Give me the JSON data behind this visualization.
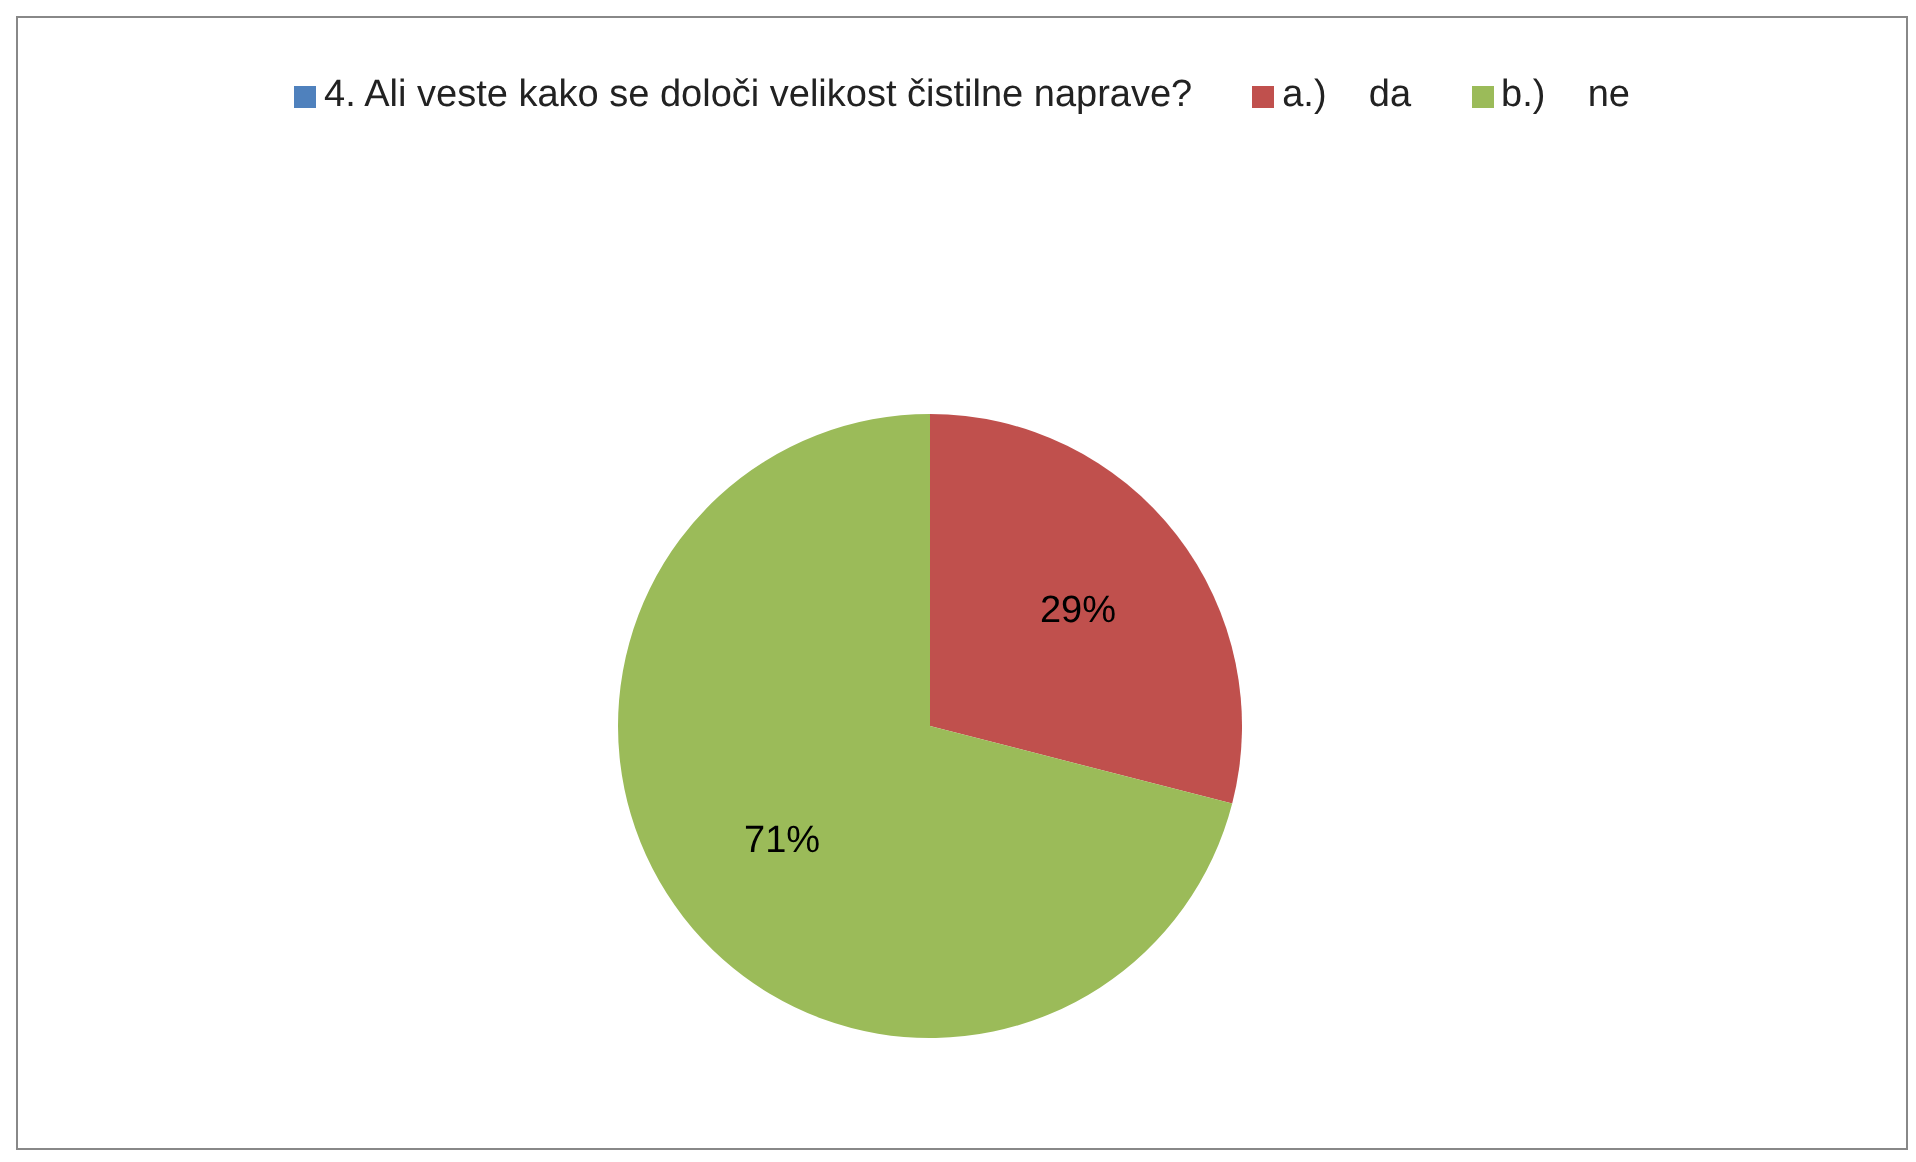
{
  "chart_data": {
    "type": "pie",
    "categories": [
      "a.)    da",
      "b.)    ne"
    ],
    "series": [
      {
        "name": "4. Ali veste kako se določi velikost čistilne naprave?",
        "color": "#4f81bd",
        "values": [
          29,
          71
        ],
        "value_labels": [
          "29%",
          "71%"
        ]
      }
    ],
    "colors": [
      "#c0504d",
      "#9bbb59"
    ],
    "legend": "top"
  }
}
